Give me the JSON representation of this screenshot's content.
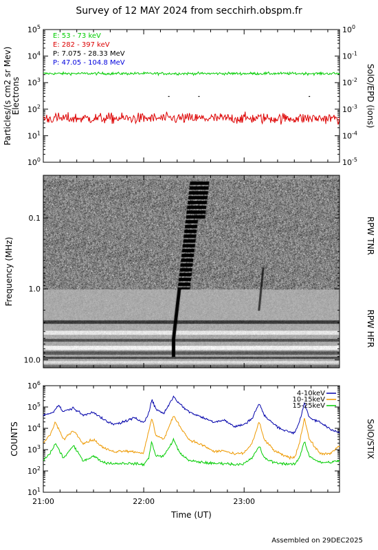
{
  "title": "Survey of 12 MAY 2024 from secchirh.obspm.fr",
  "footer": "Assembled on 29DEC2025",
  "chart_data": [
    {
      "type": "line",
      "panel": "SolO/EPD",
      "ylabel": "Particles/(s cm2 sr Mev)\nElectrons",
      "right_label": "SolO/EPD (ions)",
      "y_scale": "log",
      "ylim": [
        1,
        100000
      ],
      "y_ticks": [
        "10^0",
        "10^1",
        "10^2",
        "10^3",
        "10^4",
        "10^5"
      ],
      "right_ylim": [
        1e-05,
        1
      ],
      "right_ticks": [
        "10^-5",
        "10^-4",
        "10^-3",
        "10^-2",
        "10^-1",
        "10^0"
      ],
      "x_range_hours": [
        21.0,
        23.95
      ],
      "legend": [
        {
          "label": "E: 53 - 73 keV",
          "color": "#00cc00"
        },
        {
          "label": "E: 282 - 397 keV",
          "color": "#dd0000"
        },
        {
          "label": "P: 7.075 - 28.33 MeV",
          "color": "#000000"
        },
        {
          "label": "P: 47.05 - 104.8 MeV",
          "color": "#0000dd"
        }
      ],
      "series": [
        {
          "name": "E: 53 - 73 keV",
          "color": "#00cc00",
          "level": 2200,
          "noise_dex": 0.05
        },
        {
          "name": "E: 282 - 397 keV",
          "color": "#dd0000",
          "level": 45,
          "noise_dex": 0.2
        }
      ]
    },
    {
      "type": "heatmap",
      "panel": "RPW",
      "ylabel": "Frequency (MHz)",
      "y_scale": "log",
      "y_ticks": [
        "0.1",
        "1.0",
        "10.0"
      ],
      "ylim": [
        0.025,
        13
      ],
      "right_labels": [
        "RPW TNR",
        "RPW HFR"
      ],
      "features": [
        {
          "type": "type III burst",
          "start_time_hours": 22.28,
          "freq_range_mhz": [
            0.03,
            9.0
          ]
        },
        {
          "type": "weak burst",
          "start_time_hours": 23.18,
          "freq_range_mhz": [
            0.5,
            2.0
          ]
        }
      ]
    },
    {
      "type": "line",
      "panel": "SolO/STIX",
      "ylabel": "COUNTS",
      "right_label": "SolO/STIX",
      "y_scale": "log",
      "ylim": [
        10,
        1000000
      ],
      "y_ticks": [
        "10^1",
        "10^2",
        "10^3",
        "10^4",
        "10^5",
        "10^6"
      ],
      "x_ticks": [
        "21:00",
        "22:00",
        "23:00"
      ],
      "xlabel": "Time (UT)",
      "legend": [
        {
          "label": "4-10keV",
          "color": "#0000aa"
        },
        {
          "label": "10-15keV",
          "color": "#ee9900"
        },
        {
          "label": "15-25keV",
          "color": "#00cc00"
        }
      ],
      "series": [
        {
          "name": "4-10keV",
          "color": "#0000aa",
          "points": [
            [
              21.0,
              40000
            ],
            [
              21.1,
              60000
            ],
            [
              21.15,
              120000
            ],
            [
              21.2,
              60000
            ],
            [
              21.3,
              90000
            ],
            [
              21.4,
              40000
            ],
            [
              21.5,
              60000
            ],
            [
              21.6,
              25000
            ],
            [
              21.7,
              15000
            ],
            [
              21.8,
              20000
            ],
            [
              21.9,
              30000
            ],
            [
              22.0,
              20000
            ],
            [
              22.05,
              50000
            ],
            [
              22.08,
              230000
            ],
            [
              22.12,
              80000
            ],
            [
              22.2,
              50000
            ],
            [
              22.3,
              320000
            ],
            [
              22.35,
              150000
            ],
            [
              22.45,
              60000
            ],
            [
              22.6,
              30000
            ],
            [
              22.7,
              20000
            ],
            [
              22.8,
              25000
            ],
            [
              22.9,
              12000
            ],
            [
              23.0,
              15000
            ],
            [
              23.08,
              30000
            ],
            [
              23.15,
              150000
            ],
            [
              23.2,
              40000
            ],
            [
              23.3,
              15000
            ],
            [
              23.4,
              8000
            ],
            [
              23.5,
              6000
            ],
            [
              23.55,
              20000
            ],
            [
              23.6,
              150000
            ],
            [
              23.65,
              30000
            ],
            [
              23.75,
              20000
            ],
            [
              23.85,
              10000
            ],
            [
              23.95,
              6000
            ]
          ]
        },
        {
          "name": "10-15keV",
          "color": "#ee9900",
          "points": [
            [
              21.0,
              2000
            ],
            [
              21.08,
              6000
            ],
            [
              21.12,
              20000
            ],
            [
              21.2,
              3000
            ],
            [
              21.3,
              8000
            ],
            [
              21.4,
              2000
            ],
            [
              21.5,
              3000
            ],
            [
              21.6,
              1200
            ],
            [
              21.7,
              800
            ],
            [
              21.8,
              900
            ],
            [
              21.9,
              800
            ],
            [
              22.0,
              700
            ],
            [
              22.08,
              30000
            ],
            [
              22.12,
              5000
            ],
            [
              22.2,
              3000
            ],
            [
              22.3,
              40000
            ],
            [
              22.35,
              15000
            ],
            [
              22.45,
              3000
            ],
            [
              22.6,
              1500
            ],
            [
              22.7,
              800
            ],
            [
              22.8,
              900
            ],
            [
              22.9,
              600
            ],
            [
              23.0,
              700
            ],
            [
              23.08,
              2000
            ],
            [
              23.15,
              20000
            ],
            [
              23.2,
              3000
            ],
            [
              23.3,
              900
            ],
            [
              23.4,
              500
            ],
            [
              23.5,
              400
            ],
            [
              23.55,
              2000
            ],
            [
              23.6,
              30000
            ],
            [
              23.65,
              3000
            ],
            [
              23.75,
              700
            ],
            [
              23.85,
              600
            ],
            [
              23.95,
              1500
            ]
          ]
        },
        {
          "name": "15-25keV",
          "color": "#00cc00",
          "points": [
            [
              21.0,
              300
            ],
            [
              21.08,
              800
            ],
            [
              21.12,
              2000
            ],
            [
              21.2,
              400
            ],
            [
              21.3,
              1500
            ],
            [
              21.4,
              300
            ],
            [
              21.5,
              500
            ],
            [
              21.6,
              250
            ],
            [
              21.7,
              220
            ],
            [
              21.8,
              230
            ],
            [
              21.9,
              220
            ],
            [
              22.0,
              200
            ],
            [
              22.05,
              400
            ],
            [
              22.08,
              2500
            ],
            [
              22.12,
              500
            ],
            [
              22.2,
              500
            ],
            [
              22.3,
              3000
            ],
            [
              22.35,
              800
            ],
            [
              22.45,
              300
            ],
            [
              22.6,
              250
            ],
            [
              22.7,
              220
            ],
            [
              22.8,
              230
            ],
            [
              22.9,
              200
            ],
            [
              23.0,
              220
            ],
            [
              23.08,
              400
            ],
            [
              23.15,
              1500
            ],
            [
              23.2,
              400
            ],
            [
              23.3,
              250
            ],
            [
              23.4,
              220
            ],
            [
              23.5,
              200
            ],
            [
              23.55,
              400
            ],
            [
              23.6,
              2500
            ],
            [
              23.65,
              500
            ],
            [
              23.75,
              250
            ],
            [
              23.85,
              250
            ],
            [
              23.95,
              300
            ]
          ]
        }
      ]
    }
  ]
}
